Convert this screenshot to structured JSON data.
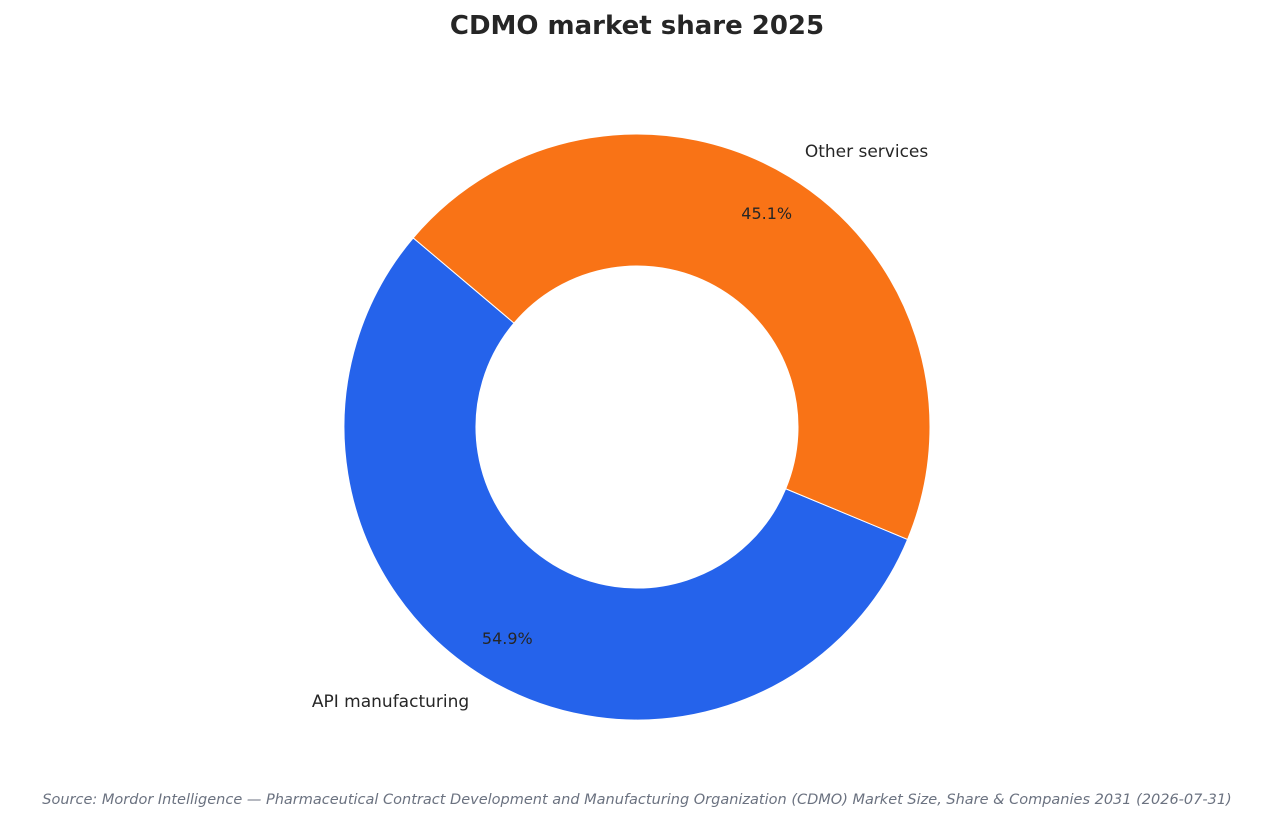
{
  "chart_data": {
    "type": "pie",
    "title": "CDMO market share 2025",
    "donut": true,
    "categories": [
      "API manufacturing",
      "Other services"
    ],
    "values": [
      54.9,
      45.1
    ],
    "value_labels": [
      "54.9%",
      "45.1%"
    ],
    "colors": [
      "#2563eb",
      "#f97316"
    ],
    "legend": "none"
  },
  "source": "Source: Mordor Intelligence — Pharmaceutical Contract Development and Manufacturing Organization (CDMO) Market Size, Share & Companies 2031 (2026-07-31)"
}
